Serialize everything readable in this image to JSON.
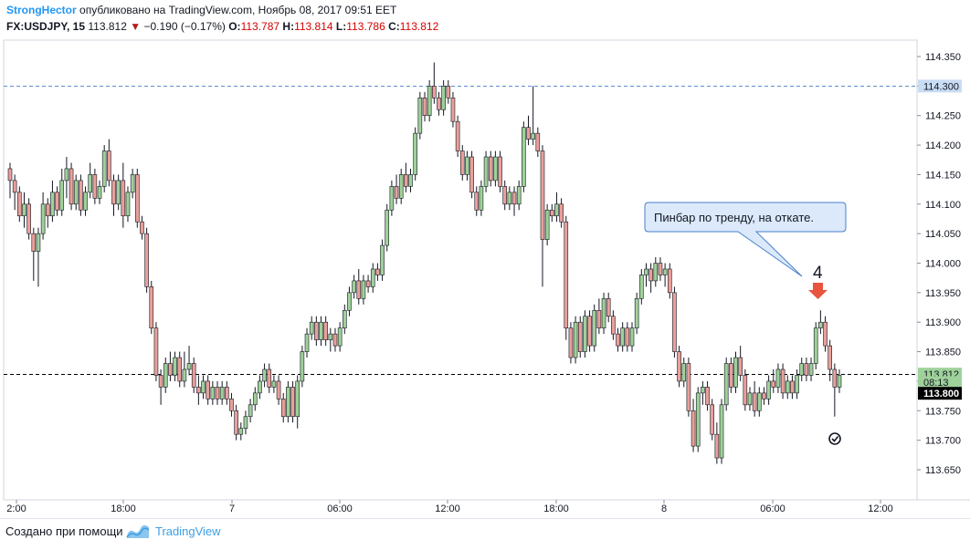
{
  "header": {
    "author": "StrongHector",
    "published": "опубликовано на TradingView.com, Ноябрь 08, 2017 09:51 EET",
    "symbol": "FX:USDJPY, 15",
    "price": "113.812",
    "change": "−0.190 (−0.17%)",
    "o_label": "O:",
    "o_value": "113.787",
    "h_label": "H:",
    "h_value": "113.814",
    "l_label": "L:",
    "l_value": "113.786",
    "c_label": "C:",
    "c_value": "113.812",
    "colors": {
      "author": "#2196f3",
      "down": "#b71c1c",
      "ohlc": "#d50000"
    }
  },
  "footer": {
    "made_with": "Создано при помощи",
    "brand": "TradingView"
  },
  "chart_data": {
    "type": "candlestick",
    "title": "FX:USDJPY, 15",
    "x_tick_labels": [
      "2:00",
      "18:00",
      "7",
      "06:00",
      "12:00",
      "18:00",
      "8",
      "06:00",
      "12:00"
    ],
    "y_tick_labels": [
      "114.350",
      "114.300",
      "114.250",
      "114.200",
      "114.150",
      "114.100",
      "114.050",
      "114.000",
      "113.950",
      "113.900",
      "113.850",
      "113.800",
      "113.750",
      "113.700",
      "113.650"
    ],
    "ylim": [
      113.63,
      114.39
    ],
    "grid": false,
    "price_lines": [
      {
        "value": 114.3,
        "label": "114.300",
        "style": "dashed",
        "color": "#5b8fd0"
      },
      {
        "value": 113.812,
        "label": "113.812",
        "style": "dashed",
        "color": "#000000"
      }
    ],
    "price_tags": [
      {
        "value": 114.3,
        "label": "114.300",
        "color": "#c9dcf3",
        "text_color": "#131722"
      },
      {
        "value": 113.812,
        "label": "113.812",
        "color": "#9fd19a",
        "text_color": "#131722"
      },
      {
        "value": 113.7985,
        "label": "08:13",
        "color": "#9fd19a",
        "text_color": "#131722"
      },
      {
        "value": 113.7795,
        "label": "113.800",
        "color": "#000000",
        "text_color": "#ffffff"
      }
    ],
    "annotations": [
      {
        "type": "callout",
        "text": "Пинбар по тренду, на откате."
      },
      {
        "type": "label",
        "text": "4"
      },
      {
        "type": "arrow-down",
        "color": "#e8543d"
      },
      {
        "type": "check-circle"
      }
    ],
    "colors": {
      "up": "#9fd19a",
      "down": "#e9a09a",
      "wick": "#131722"
    },
    "candles": [
      [
        114.16,
        114.17,
        114.11,
        114.14
      ],
      [
        114.14,
        114.15,
        114.09,
        114.12
      ],
      [
        114.12,
        114.13,
        114.07,
        114.08
      ],
      [
        114.08,
        114.12,
        114.06,
        114.1
      ],
      [
        114.1,
        114.11,
        114.04,
        114.05
      ],
      [
        114.05,
        114.06,
        113.97,
        114.02
      ],
      [
        114.02,
        114.06,
        113.96,
        114.05
      ],
      [
        114.05,
        114.12,
        114.04,
        114.1
      ],
      [
        114.1,
        114.11,
        114.06,
        114.08
      ],
      [
        114.08,
        114.14,
        114.07,
        114.12
      ],
      [
        114.12,
        114.13,
        114.08,
        114.09
      ],
      [
        114.09,
        114.16,
        114.08,
        114.14
      ],
      [
        114.14,
        114.18,
        114.11,
        114.16
      ],
      [
        114.16,
        114.17,
        114.09,
        114.1
      ],
      [
        114.1,
        114.15,
        114.09,
        114.14
      ],
      [
        114.14,
        114.15,
        114.08,
        114.09
      ],
      [
        114.09,
        114.13,
        114.08,
        114.12
      ],
      [
        114.12,
        114.17,
        114.11,
        114.15
      ],
      [
        114.15,
        114.16,
        114.1,
        114.11
      ],
      [
        114.11,
        114.14,
        114.1,
        114.13
      ],
      [
        114.13,
        114.2,
        114.12,
        114.19
      ],
      [
        114.19,
        114.21,
        114.13,
        114.14
      ],
      [
        114.14,
        114.15,
        114.08,
        114.1
      ],
      [
        114.1,
        114.15,
        114.09,
        114.14
      ],
      [
        114.14,
        114.17,
        114.06,
        114.08
      ],
      [
        114.08,
        114.13,
        114.07,
        114.12
      ],
      [
        114.12,
        114.16,
        114.11,
        114.15
      ],
      [
        114.15,
        114.16,
        114.06,
        114.07
      ],
      [
        114.07,
        114.08,
        114.04,
        114.05
      ],
      [
        114.05,
        114.06,
        113.95,
        113.96
      ],
      [
        113.96,
        113.97,
        113.88,
        113.89
      ],
      [
        113.89,
        113.9,
        113.8,
        113.81
      ],
      [
        113.81,
        113.82,
        113.76,
        113.79
      ],
      [
        113.79,
        113.84,
        113.78,
        113.83
      ],
      [
        113.83,
        113.85,
        113.8,
        113.81
      ],
      [
        113.81,
        113.85,
        113.8,
        113.84
      ],
      [
        113.84,
        113.85,
        113.79,
        113.8
      ],
      [
        113.8,
        113.85,
        113.79,
        113.82
      ],
      [
        113.82,
        113.86,
        113.81,
        113.83
      ],
      [
        113.83,
        113.84,
        113.78,
        113.79
      ],
      [
        113.79,
        113.81,
        113.76,
        113.78
      ],
      [
        113.78,
        113.81,
        113.77,
        113.8
      ],
      [
        113.8,
        113.81,
        113.76,
        113.77
      ],
      [
        113.77,
        113.8,
        113.76,
        113.79
      ],
      [
        113.79,
        113.8,
        113.76,
        113.77
      ],
      [
        113.77,
        113.8,
        113.76,
        113.79
      ],
      [
        113.79,
        113.8,
        113.76,
        113.77
      ],
      [
        113.77,
        113.78,
        113.74,
        113.75
      ],
      [
        113.75,
        113.76,
        113.7,
        113.71
      ],
      [
        113.71,
        113.73,
        113.7,
        113.72
      ],
      [
        113.72,
        113.75,
        113.71,
        113.74
      ],
      [
        113.74,
        113.77,
        113.73,
        113.76
      ],
      [
        113.76,
        113.79,
        113.75,
        113.78
      ],
      [
        113.78,
        113.81,
        113.77,
        113.8
      ],
      [
        113.8,
        113.83,
        113.79,
        113.82
      ],
      [
        113.82,
        113.83,
        113.78,
        113.79
      ],
      [
        113.79,
        113.81,
        113.78,
        113.8
      ],
      [
        113.8,
        113.81,
        113.76,
        113.77
      ],
      [
        113.77,
        113.78,
        113.73,
        113.74
      ],
      [
        113.74,
        113.8,
        113.73,
        113.79
      ],
      [
        113.79,
        113.8,
        113.73,
        113.74
      ],
      [
        113.74,
        113.81,
        113.72,
        113.8
      ],
      [
        113.8,
        113.86,
        113.79,
        113.85
      ],
      [
        113.85,
        113.89,
        113.84,
        113.88
      ],
      [
        113.88,
        113.91,
        113.87,
        113.9
      ],
      [
        113.9,
        113.91,
        113.86,
        113.87
      ],
      [
        113.87,
        113.91,
        113.86,
        113.9
      ],
      [
        113.9,
        113.91,
        113.86,
        113.87
      ],
      [
        113.87,
        113.89,
        113.85,
        113.88
      ],
      [
        113.88,
        113.89,
        113.85,
        113.86
      ],
      [
        113.86,
        113.9,
        113.85,
        113.89
      ],
      [
        113.89,
        113.93,
        113.88,
        113.92
      ],
      [
        113.92,
        113.96,
        113.91,
        113.95
      ],
      [
        113.95,
        113.98,
        113.94,
        113.97
      ],
      [
        113.97,
        113.99,
        113.93,
        113.94
      ],
      [
        113.94,
        113.98,
        113.93,
        113.97
      ],
      [
        113.97,
        113.98,
        113.95,
        113.96
      ],
      [
        113.96,
        114.0,
        113.95,
        113.99
      ],
      [
        113.99,
        114.0,
        113.97,
        113.98
      ],
      [
        113.98,
        114.04,
        113.97,
        114.03
      ],
      [
        114.03,
        114.1,
        114.02,
        114.09
      ],
      [
        114.09,
        114.14,
        114.08,
        114.13
      ],
      [
        114.13,
        114.15,
        114.1,
        114.11
      ],
      [
        114.11,
        114.16,
        114.1,
        114.15
      ],
      [
        114.15,
        114.17,
        114.12,
        114.13
      ],
      [
        114.13,
        114.16,
        114.12,
        114.15
      ],
      [
        114.15,
        114.23,
        114.14,
        114.22
      ],
      [
        114.22,
        114.29,
        114.21,
        114.28
      ],
      [
        114.28,
        114.29,
        114.24,
        114.25
      ],
      [
        114.25,
        114.31,
        114.24,
        114.3
      ],
      [
        114.3,
        114.34,
        114.27,
        114.28
      ],
      [
        114.28,
        114.29,
        114.25,
        114.26
      ],
      [
        114.26,
        114.31,
        114.25,
        114.3
      ],
      [
        114.3,
        114.31,
        114.27,
        114.28
      ],
      [
        114.28,
        114.29,
        114.23,
        114.24
      ],
      [
        114.24,
        114.25,
        114.18,
        114.19
      ],
      [
        114.19,
        114.2,
        114.14,
        114.15
      ],
      [
        114.15,
        114.19,
        114.14,
        114.18
      ],
      [
        114.18,
        114.19,
        114.11,
        114.12
      ],
      [
        114.12,
        114.13,
        114.08,
        114.09
      ],
      [
        114.09,
        114.14,
        114.08,
        114.13
      ],
      [
        114.13,
        114.19,
        114.12,
        114.18
      ],
      [
        114.18,
        114.19,
        114.13,
        114.14
      ],
      [
        114.14,
        114.19,
        114.13,
        114.18
      ],
      [
        114.18,
        114.19,
        114.12,
        114.13
      ],
      [
        114.13,
        114.14,
        114.09,
        114.1
      ],
      [
        114.1,
        114.13,
        114.09,
        114.12
      ],
      [
        114.12,
        114.13,
        114.08,
        114.1
      ],
      [
        114.1,
        114.14,
        114.09,
        114.13
      ],
      [
        114.13,
        114.24,
        114.12,
        114.23
      ],
      [
        114.23,
        114.25,
        114.2,
        114.21
      ],
      [
        114.21,
        114.3,
        114.2,
        114.22
      ],
      [
        114.22,
        114.23,
        114.18,
        114.19
      ],
      [
        114.19,
        114.2,
        113.96,
        114.04
      ],
      [
        114.04,
        114.1,
        114.03,
        114.09
      ],
      [
        114.09,
        114.1,
        114.07,
        114.08
      ],
      [
        114.08,
        114.12,
        114.07,
        114.1
      ],
      [
        114.1,
        114.11,
        114.06,
        114.07
      ],
      [
        114.07,
        114.08,
        113.87,
        113.89
      ],
      [
        113.89,
        113.9,
        113.83,
        113.84
      ],
      [
        113.84,
        113.91,
        113.83,
        113.9
      ],
      [
        113.9,
        113.91,
        113.84,
        113.85
      ],
      [
        113.85,
        113.92,
        113.84,
        113.91
      ],
      [
        113.91,
        113.92,
        113.85,
        113.86
      ],
      [
        113.86,
        113.93,
        113.85,
        113.92
      ],
      [
        113.92,
        113.94,
        113.88,
        113.89
      ],
      [
        113.89,
        113.95,
        113.88,
        113.94
      ],
      [
        113.94,
        113.95,
        113.9,
        113.91
      ],
      [
        113.91,
        113.92,
        113.87,
        113.88
      ],
      [
        113.88,
        113.89,
        113.85,
        113.86
      ],
      [
        113.86,
        113.9,
        113.85,
        113.89
      ],
      [
        113.89,
        113.9,
        113.85,
        113.86
      ],
      [
        113.86,
        113.9,
        113.85,
        113.89
      ],
      [
        113.89,
        113.95,
        113.88,
        113.94
      ],
      [
        113.94,
        113.99,
        113.93,
        113.98
      ],
      [
        113.98,
        114.0,
        113.96,
        113.99
      ],
      [
        113.99,
        114.0,
        113.95,
        113.97
      ],
      [
        113.97,
        114.01,
        113.96,
        114.0
      ],
      [
        114.0,
        114.01,
        113.97,
        113.98
      ],
      [
        113.98,
        114.0,
        113.96,
        113.99
      ],
      [
        113.99,
        114.0,
        113.94,
        113.95
      ],
      [
        113.95,
        113.96,
        113.84,
        113.85
      ],
      [
        113.85,
        113.86,
        113.79,
        113.8
      ],
      [
        113.8,
        113.84,
        113.79,
        113.83
      ],
      [
        113.83,
        113.84,
        113.74,
        113.75
      ],
      [
        113.75,
        113.77,
        113.68,
        113.69
      ],
      [
        113.69,
        113.79,
        113.68,
        113.78
      ],
      [
        113.78,
        113.8,
        113.76,
        113.79
      ],
      [
        113.79,
        113.8,
        113.75,
        113.76
      ],
      [
        113.76,
        113.77,
        113.7,
        113.71
      ],
      [
        113.71,
        113.73,
        113.66,
        113.67
      ],
      [
        113.67,
        113.77,
        113.66,
        113.76
      ],
      [
        113.76,
        113.84,
        113.75,
        113.83
      ],
      [
        113.83,
        113.84,
        113.78,
        113.79
      ],
      [
        113.79,
        113.85,
        113.78,
        113.84
      ],
      [
        113.84,
        113.86,
        113.8,
        113.81
      ],
      [
        113.81,
        113.82,
        113.75,
        113.76
      ],
      [
        113.76,
        113.79,
        113.75,
        113.78
      ],
      [
        113.78,
        113.8,
        113.74,
        113.75
      ],
      [
        113.75,
        113.79,
        113.74,
        113.78
      ],
      [
        113.78,
        113.79,
        113.76,
        113.77
      ],
      [
        113.77,
        113.81,
        113.76,
        113.8
      ],
      [
        113.8,
        113.82,
        113.78,
        113.79
      ],
      [
        113.79,
        113.83,
        113.78,
        113.82
      ],
      [
        113.82,
        113.83,
        113.77,
        113.78
      ],
      [
        113.78,
        113.81,
        113.77,
        113.8
      ],
      [
        113.8,
        113.81,
        113.77,
        113.78
      ],
      [
        113.78,
        113.82,
        113.77,
        113.81
      ],
      [
        113.81,
        113.84,
        113.8,
        113.83
      ],
      [
        113.83,
        113.84,
        113.8,
        113.81
      ],
      [
        113.81,
        113.84,
        113.8,
        113.83
      ],
      [
        113.83,
        113.9,
        113.82,
        113.89
      ],
      [
        113.89,
        113.92,
        113.88,
        113.9
      ],
      [
        113.9,
        113.91,
        113.85,
        113.86
      ],
      [
        113.86,
        113.87,
        113.8,
        113.82
      ],
      [
        113.82,
        113.83,
        113.74,
        113.79
      ],
      [
        113.79,
        113.82,
        113.78,
        113.81
      ]
    ]
  }
}
